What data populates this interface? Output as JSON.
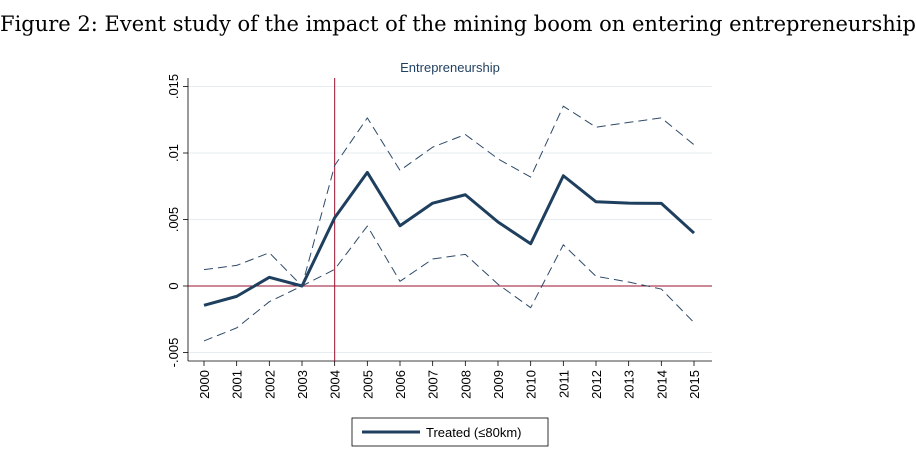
{
  "figure_title": "Figure 2: Event study of the impact of the mining boom on entering entrepreneurship",
  "chart_data": {
    "type": "line",
    "title": "Entrepreneurship",
    "xlabel": "",
    "ylabel": "",
    "x": [
      2000,
      2001,
      2002,
      2003,
      2004,
      2005,
      2006,
      2007,
      2008,
      2009,
      2010,
      2011,
      2012,
      2013,
      2014,
      2015
    ],
    "x_tick_labels": [
      "2000",
      "2001",
      "2002",
      "2003",
      "2004",
      "2005",
      "2006",
      "2007",
      "2008",
      "2009",
      "2010",
      "2011",
      "2012",
      "2013",
      "2014",
      "2015"
    ],
    "ylim": [
      -0.0055,
      0.0155
    ],
    "y_ticks": [
      -0.005,
      0,
      0.005,
      0.01,
      0.015
    ],
    "y_tick_labels": [
      "-.005",
      "0",
      ".005",
      ".01",
      ".015"
    ],
    "series": [
      {
        "name": "Treated (≤80km)",
        "style": "solid",
        "color": "#1f3f5f",
        "values": [
          -0.00145,
          -0.00078,
          0.00065,
          0,
          0.00513,
          0.00854,
          0.00453,
          0.00623,
          0.00686,
          0.00481,
          0.00318,
          0.00829,
          0.00633,
          0.00623,
          0.00621,
          0.00398
        ]
      },
      {
        "name": "upper CI",
        "style": "dashed",
        "color": "#2e4a68",
        "values": [
          0.00123,
          0.00155,
          0.0025,
          0,
          0.00906,
          0.01264,
          0.00869,
          0.01044,
          0.01139,
          0.00956,
          0.00819,
          0.01352,
          0.01194,
          0.0123,
          0.01264,
          0.01062
        ]
      },
      {
        "name": "lower CI",
        "style": "dashed",
        "color": "#2e4a68",
        "values": [
          -0.00413,
          -0.00315,
          -0.00118,
          0,
          0.00125,
          0.00451,
          0.00035,
          0.00203,
          0.00238,
          0.00013,
          -0.00163,
          0.0031,
          0.00073,
          0.0003,
          -0.00023,
          -0.00275
        ]
      }
    ],
    "reference_lines": {
      "vertical_x": 2004,
      "horizontal_y": 0,
      "color": "#9b1030"
    },
    "grid": true,
    "legend": {
      "placement": "bottom",
      "entries": [
        "Treated (≤80km)"
      ]
    }
  }
}
